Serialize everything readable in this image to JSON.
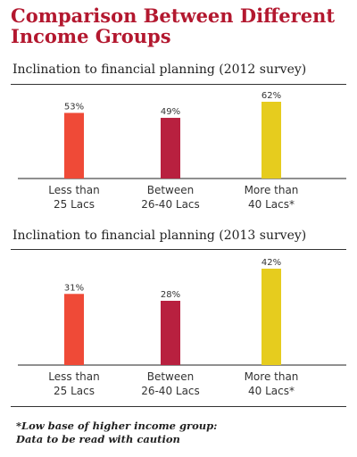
{
  "title": "Comparison Between Different Income Groups",
  "footnote": {
    "line1": "*Low base of higher income group:",
    "line2": "Data to be read with caution"
  },
  "chart_data": [
    {
      "type": "bar",
      "title": "Inclination to financial planning (2012 survey)",
      "categories": [
        [
          "Less than",
          "25 Lacs"
        ],
        [
          "Between",
          "26-40 Lacs"
        ],
        [
          "More than",
          "40 Lacs*"
        ]
      ],
      "values": [
        53,
        49,
        62
      ],
      "labels": [
        "53%",
        "49%",
        "62%"
      ],
      "colors": [
        "#ef4a37",
        "#b8203f",
        "#e6cc1e"
      ],
      "ylim": [
        0,
        70
      ],
      "grid": false
    },
    {
      "type": "bar",
      "title": "Inclination to financial planning (2013 survey)",
      "categories": [
        [
          "Less than",
          "25 Lacs"
        ],
        [
          "Between",
          "26-40 Lacs"
        ],
        [
          "More than",
          "40 Lacs*"
        ]
      ],
      "values": [
        31,
        28,
        42
      ],
      "labels": [
        "31%",
        "28%",
        "42%"
      ],
      "colors": [
        "#ef4a37",
        "#b8203f",
        "#e6cc1e"
      ],
      "ylim": [
        0,
        50
      ],
      "grid": false
    }
  ]
}
